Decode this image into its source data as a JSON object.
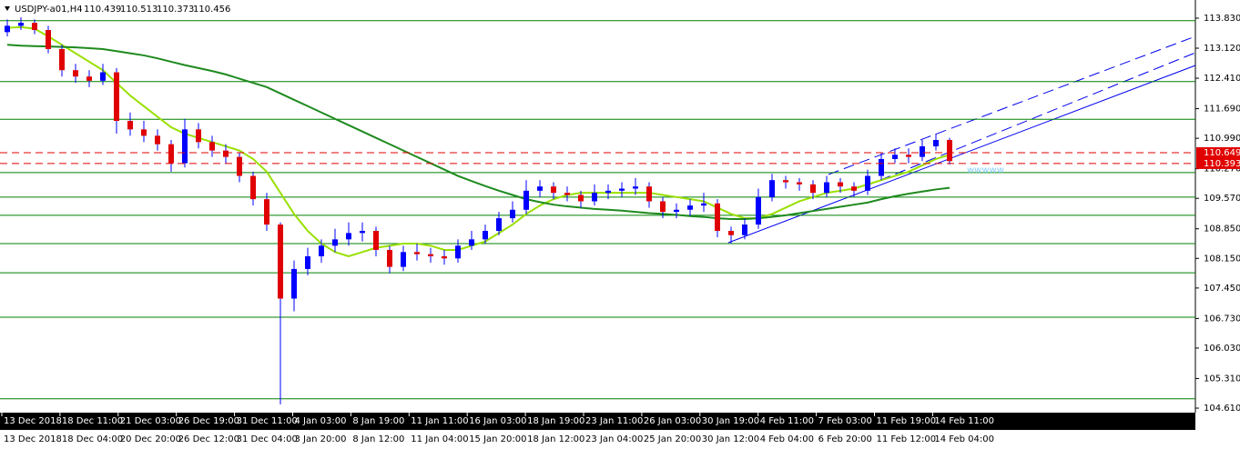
{
  "chart_data": {
    "type": "candlestick",
    "symbol": "USDJPY-a01,H4",
    "quote": [
      110.439,
      110.513,
      110.373,
      110.456
    ],
    "ylim": [
      104.546,
      114.152
    ],
    "yticks": [
      {
        "value": 113.83,
        "label": "113.830"
      },
      {
        "value": 113.12,
        "label": "113.120"
      },
      {
        "value": 112.41,
        "label": "112.410"
      },
      {
        "value": 111.69,
        "label": "111.690"
      },
      {
        "value": 110.99,
        "label": "110.990"
      },
      {
        "value": 110.27,
        "label": "110.270"
      },
      {
        "value": 109.57,
        "label": "109.570"
      },
      {
        "value": 108.85,
        "label": "108.850"
      },
      {
        "value": 108.15,
        "label": "108.150"
      },
      {
        "value": 107.45,
        "label": "107.450"
      },
      {
        "value": 106.73,
        "label": "106.730"
      },
      {
        "value": 106.03,
        "label": "106.030"
      },
      {
        "value": 105.31,
        "label": "105.310"
      },
      {
        "value": 104.61,
        "label": "104.610"
      }
    ],
    "levels": [
      113.77,
      112.33,
      111.44,
      110.18,
      109.6,
      109.17,
      108.5,
      107.81,
      106.76,
      104.83
    ],
    "level_color": "#008000",
    "price_lines": [
      110.649,
      110.393
    ],
    "price_line_color": "#e00000",
    "up_color": "#0000ff",
    "down_color": "#e00000",
    "x_labels": [
      "13 Dec 2018",
      "18 Dec 11:00",
      "21 Dec 03:00",
      "26 Dec 19:00",
      "31 Dec 11:00",
      "4 Jan 03:00",
      "8 Jan 19:00",
      "11 Jan 11:00",
      "16 Jan 03:00",
      "18 Jan 19:00",
      "23 Jan 11:00",
      "26 Jan 03:00",
      "30 Jan 19:00",
      "4 Feb 11:00",
      "7 Feb 03:00",
      "11 Feb 19:00",
      "14 Feb 11:00"
    ],
    "x_labels_2": [
      "13 Dec 2018",
      "18 Dec 04:00",
      "20 Dec 20:00",
      "26 Dec 12:00",
      "31 Dec 04:00",
      "3 Jan 20:00",
      "8 Jan 12:00",
      "11 Jan 04:00",
      "15 Jan 20:00",
      "18 Jan 12:00",
      "23 Jan 04:00",
      "25 Jan 20:00",
      "30 Jan 12:00",
      "4 Feb 04:00",
      "6 Feb 20:00",
      "11 Feb 12:00",
      "14 Feb 04:00"
    ],
    "annotation": "wwwww",
    "candles": [
      [
        113.5,
        113.8,
        113.4,
        113.65
      ],
      [
        113.65,
        113.85,
        113.55,
        113.72
      ],
      [
        113.72,
        113.8,
        113.45,
        113.55
      ],
      [
        113.55,
        113.65,
        113.0,
        113.1
      ],
      [
        113.1,
        113.2,
        112.45,
        112.6
      ],
      [
        112.6,
        112.75,
        112.3,
        112.45
      ],
      [
        112.45,
        112.6,
        112.2,
        112.35
      ],
      [
        112.35,
        112.75,
        112.25,
        112.55
      ],
      [
        112.55,
        112.65,
        111.1,
        111.4
      ],
      [
        111.4,
        111.6,
        111.05,
        111.2
      ],
      [
        111.2,
        111.4,
        110.9,
        111.05
      ],
      [
        111.05,
        111.2,
        110.7,
        110.85
      ],
      [
        110.85,
        110.95,
        110.2,
        110.4
      ],
      [
        110.4,
        111.45,
        110.3,
        111.2
      ],
      [
        111.2,
        111.35,
        110.75,
        110.9
      ],
      [
        110.9,
        111.05,
        110.55,
        110.7
      ],
      [
        110.7,
        110.85,
        110.4,
        110.55
      ],
      [
        110.55,
        110.65,
        109.95,
        110.1
      ],
      [
        110.1,
        110.2,
        109.4,
        109.55
      ],
      [
        109.55,
        109.7,
        108.8,
        108.95
      ],
      [
        108.95,
        109.0,
        104.7,
        107.2
      ],
      [
        107.2,
        108.1,
        106.9,
        107.9
      ],
      [
        107.9,
        108.4,
        107.75,
        108.2
      ],
      [
        108.2,
        108.6,
        108.05,
        108.45
      ],
      [
        108.45,
        108.85,
        108.3,
        108.6
      ],
      [
        108.6,
        109.0,
        108.45,
        108.75
      ],
      [
        108.75,
        109.0,
        108.55,
        108.8
      ],
      [
        108.8,
        108.9,
        108.2,
        108.35
      ],
      [
        108.35,
        108.45,
        107.8,
        107.95
      ],
      [
        107.95,
        108.45,
        107.85,
        108.3
      ],
      [
        108.3,
        108.5,
        108.1,
        108.25
      ],
      [
        108.25,
        108.4,
        108.05,
        108.2
      ],
      [
        108.2,
        108.35,
        108.0,
        108.15
      ],
      [
        108.15,
        108.6,
        108.05,
        108.45
      ],
      [
        108.45,
        108.8,
        108.35,
        108.6
      ],
      [
        108.6,
        108.95,
        108.5,
        108.8
      ],
      [
        108.8,
        109.25,
        108.7,
        109.1
      ],
      [
        109.1,
        109.5,
        109.0,
        109.3
      ],
      [
        109.3,
        110.0,
        109.2,
        109.75
      ],
      [
        109.75,
        110.0,
        109.6,
        109.85
      ],
      [
        109.85,
        109.95,
        109.55,
        109.7
      ],
      [
        109.7,
        109.85,
        109.5,
        109.65
      ],
      [
        109.65,
        109.75,
        109.35,
        109.5
      ],
      [
        109.5,
        109.9,
        109.4,
        109.7
      ],
      [
        109.7,
        109.9,
        109.55,
        109.75
      ],
      [
        109.75,
        109.95,
        109.6,
        109.8
      ],
      [
        109.8,
        110.05,
        109.65,
        109.85
      ],
      [
        109.85,
        109.95,
        109.35,
        109.5
      ],
      [
        109.5,
        109.6,
        109.1,
        109.25
      ],
      [
        109.25,
        109.45,
        109.1,
        109.3
      ],
      [
        109.3,
        109.55,
        109.15,
        109.4
      ],
      [
        109.4,
        109.7,
        109.25,
        109.45
      ],
      [
        109.45,
        109.55,
        108.65,
        108.8
      ],
      [
        108.8,
        108.9,
        108.5,
        108.7
      ],
      [
        108.7,
        109.1,
        108.6,
        108.95
      ],
      [
        108.95,
        109.8,
        108.85,
        109.6
      ],
      [
        109.6,
        110.15,
        109.5,
        110.0
      ],
      [
        110.0,
        110.1,
        109.8,
        109.95
      ],
      [
        109.95,
        110.05,
        109.75,
        109.9
      ],
      [
        109.9,
        110.0,
        109.55,
        109.7
      ],
      [
        109.7,
        110.1,
        109.6,
        109.95
      ],
      [
        109.95,
        110.05,
        109.7,
        109.85
      ],
      [
        109.85,
        109.95,
        109.6,
        109.75
      ],
      [
        109.75,
        110.25,
        109.65,
        110.1
      ],
      [
        110.1,
        110.65,
        110.0,
        110.5
      ],
      [
        110.5,
        110.75,
        110.4,
        110.6
      ],
      [
        110.6,
        110.75,
        110.4,
        110.55
      ],
      [
        110.55,
        110.95,
        110.45,
        110.8
      ],
      [
        110.8,
        111.1,
        110.7,
        110.95
      ],
      [
        110.95,
        111.0,
        110.37,
        110.45
      ]
    ],
    "series": [
      {
        "color": "#99e000",
        "values": [
          113.6,
          113.62,
          113.58,
          113.4,
          113.2,
          113.0,
          112.8,
          112.6,
          112.3,
          112.0,
          111.75,
          111.5,
          111.25,
          111.1,
          111.0,
          110.9,
          110.8,
          110.7,
          110.5,
          110.2,
          109.7,
          109.2,
          108.8,
          108.5,
          108.3,
          108.2,
          108.3,
          108.4,
          108.45,
          108.5,
          108.5,
          108.45,
          108.35,
          108.35,
          108.45,
          108.55,
          108.75,
          108.95,
          109.2,
          109.4,
          109.55,
          109.65,
          109.7,
          109.7,
          109.7,
          109.7,
          109.7,
          109.7,
          109.65,
          109.6,
          109.55,
          109.5,
          109.35,
          109.2,
          109.1,
          109.1,
          109.2,
          109.35,
          109.5,
          109.6,
          109.7,
          109.75,
          109.8,
          109.9,
          110.0,
          110.1,
          110.2,
          110.35,
          110.5,
          110.6
        ]
      },
      {
        "color": "#1e8a1e",
        "values": [
          113.2,
          113.18,
          113.17,
          113.16,
          113.15,
          113.14,
          113.12,
          113.1,
          113.05,
          113.0,
          112.95,
          112.88,
          112.8,
          112.72,
          112.65,
          112.58,
          112.5,
          112.4,
          112.3,
          112.2,
          112.05,
          111.9,
          111.75,
          111.6,
          111.45,
          111.3,
          111.15,
          111.0,
          110.85,
          110.7,
          110.55,
          110.4,
          110.25,
          110.1,
          109.98,
          109.86,
          109.75,
          109.65,
          109.55,
          109.48,
          109.42,
          109.38,
          109.35,
          109.32,
          109.3,
          109.28,
          109.25,
          109.22,
          109.2,
          109.18,
          109.15,
          109.13,
          109.1,
          109.08,
          109.08,
          109.1,
          109.13,
          109.17,
          109.22,
          109.27,
          109.32,
          109.37,
          109.42,
          109.47,
          109.55,
          109.62,
          109.68,
          109.73,
          109.78,
          109.82
        ]
      }
    ]
  }
}
